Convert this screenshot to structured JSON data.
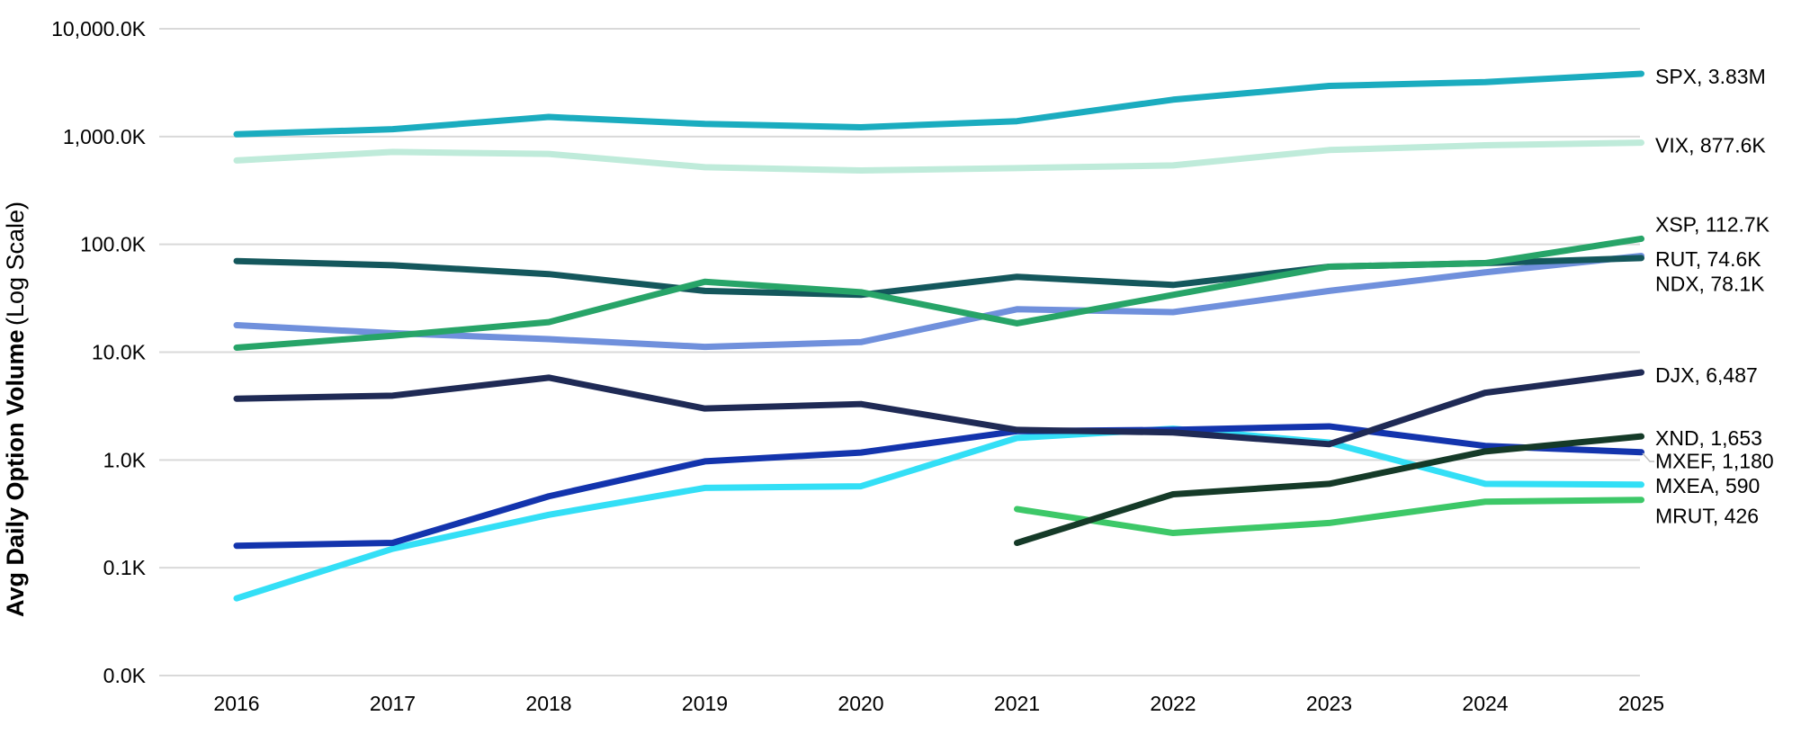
{
  "axis_title": {
    "bold": "Avg Daily Option Volume",
    "regular": " (Log Scale)"
  },
  "colors": {
    "gridline": "#D9D9D9",
    "label_text": "#000000",
    "leader_line": "#BFBFBF",
    "background": "#FFFFFF"
  },
  "chart_data": {
    "type": "line",
    "title": "",
    "ylabel_bold": "Avg Daily Option Volume",
    "ylabel_regular": "(Log Scale)",
    "xlabel": "",
    "grid": "horizontal only",
    "legend_position": "direct end-of-line labels at right",
    "x": [
      2016,
      2017,
      2018,
      2019,
      2020,
      2021,
      2022,
      2023,
      2024,
      2025
    ],
    "y_axis": {
      "scale": "log10",
      "values_unit": "thousands of contracts (K)",
      "ticks": [
        {
          "label": "10,000.0K",
          "value": 10000
        },
        {
          "label": "1,000.0K",
          "value": 1000
        },
        {
          "label": "100.0K",
          "value": 100
        },
        {
          "label": "10.0K",
          "value": 10
        },
        {
          "label": "1.0K",
          "value": 1
        },
        {
          "label": "0.1K",
          "value": 0.1
        },
        {
          "label": "0.0K",
          "value": 0.01
        }
      ]
    },
    "series": [
      {
        "name": "SPX",
        "color": "#1BACBF",
        "end_label": "SPX, 3.83M",
        "values": [
          1050,
          1170,
          1520,
          1310,
          1220,
          1390,
          2200,
          2950,
          3200,
          3830
        ]
      },
      {
        "name": "VIX",
        "color": "#BFEBDA",
        "end_label": "VIX, 877.6K",
        "values": [
          600,
          720,
          690,
          520,
          485,
          510,
          540,
          750,
          830,
          877.6
        ]
      },
      {
        "name": "XSP",
        "color": "#27A468",
        "end_label": "XSP, 112.7K",
        "values": [
          11,
          14.2,
          19,
          45,
          36,
          18.5,
          34,
          62,
          67,
          112.7
        ]
      },
      {
        "name": "RUT",
        "color": "#14575C",
        "end_label": "RUT, 74.6K",
        "values": [
          70,
          64,
          53,
          37,
          34,
          50,
          42,
          62,
          67,
          74.6
        ]
      },
      {
        "name": "NDX",
        "color": "#7090DC",
        "end_label": "NDX, 78.1K",
        "values": [
          17.8,
          15,
          13.2,
          11.2,
          12.4,
          25,
          23.5,
          37,
          55,
          78.1
        ]
      },
      {
        "name": "DJX",
        "color": "#1F2A55",
        "end_label": "DJX, 6,487",
        "values": [
          3.7,
          3.95,
          5.8,
          3.0,
          3.3,
          1.9,
          1.8,
          1.4,
          4.2,
          6.487
        ]
      },
      {
        "name": "XND",
        "color": "#153A28",
        "end_label": "XND, 1,653",
        "values": [
          null,
          null,
          null,
          null,
          null,
          0.17,
          0.48,
          0.6,
          1.2,
          1.653
        ]
      },
      {
        "name": "MXEF",
        "color": "#1334AD",
        "end_label": "MXEF, 1,180",
        "values": [
          0.16,
          0.17,
          0.46,
          0.97,
          1.17,
          1.85,
          1.9,
          2.05,
          1.35,
          1.18
        ]
      },
      {
        "name": "MXEA",
        "color": "#33DFF6",
        "end_label": "MXEA, 590",
        "values": [
          0.052,
          0.15,
          0.31,
          0.55,
          0.57,
          1.6,
          1.95,
          1.45,
          0.6,
          0.59
        ]
      },
      {
        "name": "MRUT",
        "color": "#3DC868",
        "end_label": "MRUT, 426",
        "values": [
          null,
          null,
          null,
          null,
          null,
          0.35,
          0.21,
          0.26,
          0.41,
          0.426
        ]
      }
    ]
  }
}
